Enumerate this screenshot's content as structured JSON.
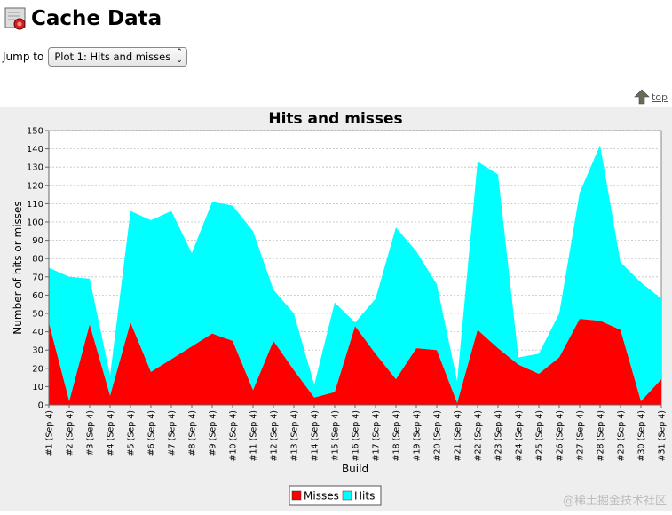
{
  "page": {
    "title": "Cache Data",
    "jump_label": "Jump to",
    "jump_selected": "Plot 1: Hits and misses",
    "top_link": "top",
    "watermark": "@稀土掘金技术社区"
  },
  "colors": {
    "misses": "#ff0000",
    "hits": "#00ffff"
  },
  "chart_data": {
    "type": "area",
    "stacked": true,
    "title": "Hits and misses",
    "xlabel": "Build",
    "ylabel": "Number of hits or misses",
    "ylim": [
      0,
      150
    ],
    "yticks": [
      0,
      10,
      20,
      30,
      40,
      50,
      60,
      70,
      80,
      90,
      100,
      110,
      120,
      130,
      140,
      150
    ],
    "grid": true,
    "legend_position": "bottom",
    "categories": [
      "#1 (Sep 4)",
      "#2 (Sep 4)",
      "#3 (Sep 4)",
      "#4 (Sep 4)",
      "#5 (Sep 4)",
      "#6 (Sep 4)",
      "#7 (Sep 4)",
      "#8 (Sep 4)",
      "#9 (Sep 4)",
      "#10 (Sep 4)",
      "#11 (Sep 4)",
      "#12 (Sep 4)",
      "#13 (Sep 4)",
      "#14 (Sep 4)",
      "#15 (Sep 4)",
      "#16 (Sep 4)",
      "#17 (Sep 4)",
      "#18 (Sep 4)",
      "#19 (Sep 4)",
      "#20 (Sep 4)",
      "#21 (Sep 4)",
      "#22 (Sep 4)",
      "#23 (Sep 4)",
      "#24 (Sep 4)",
      "#25 (Sep 4)",
      "#26 (Sep 4)",
      "#27 (Sep 4)",
      "#28 (Sep 4)",
      "#29 (Sep 4)",
      "#30 (Sep 4)",
      "#31 (Sep 4)"
    ],
    "series": [
      {
        "name": "Misses",
        "values": [
          45,
          2,
          44,
          5,
          45,
          18,
          25,
          32,
          39,
          35,
          8,
          35,
          19,
          4,
          7,
          43,
          28,
          14,
          31,
          30,
          1,
          41,
          31,
          22,
          17,
          26,
          47,
          46,
          41,
          2,
          14
        ]
      },
      {
        "name": "Hits",
        "values": [
          30,
          68,
          25,
          11,
          61,
          83,
          81,
          51,
          72,
          74,
          87,
          28,
          31,
          7,
          49,
          2,
          30,
          83,
          53,
          36,
          12,
          92,
          95,
          4,
          11,
          24,
          69,
          96,
          37,
          65,
          44
        ]
      }
    ]
  }
}
